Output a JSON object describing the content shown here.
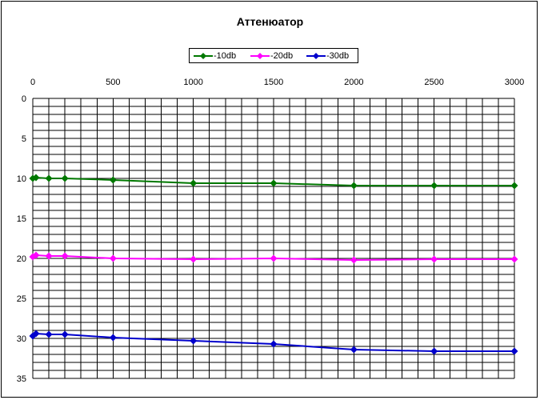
{
  "chart_data": {
    "type": "line",
    "title": "Аттенюатор",
    "xlabel": "",
    "ylabel": "",
    "x_axis_position": "top",
    "y_axis_reversed": true,
    "xlim": [
      0,
      3000
    ],
    "ylim": [
      0,
      35
    ],
    "x_ticks": [
      0,
      500,
      1000,
      1500,
      2000,
      2500,
      3000
    ],
    "y_ticks": [
      0,
      5,
      10,
      15,
      20,
      25,
      30,
      35
    ],
    "grid": true,
    "legend_position": "top-center",
    "series": [
      {
        "name": "-10db",
        "color": "#007800",
        "marker": "diamond",
        "points": [
          [
            0,
            10.0
          ],
          [
            20,
            9.9
          ],
          [
            100,
            10.0
          ],
          [
            200,
            10.0
          ],
          [
            500,
            10.2
          ],
          [
            1000,
            10.6
          ],
          [
            1500,
            10.6
          ],
          [
            2000,
            10.9
          ],
          [
            2500,
            10.9
          ],
          [
            3000,
            10.9
          ]
        ]
      },
      {
        "name": "-20db",
        "color": "#ff00ff",
        "marker": "diamond",
        "points": [
          [
            0,
            19.8
          ],
          [
            20,
            19.6
          ],
          [
            100,
            19.7
          ],
          [
            200,
            19.7
          ],
          [
            500,
            20.0
          ],
          [
            1000,
            20.1
          ],
          [
            1500,
            20.0
          ],
          [
            2000,
            20.2
          ],
          [
            2500,
            20.1
          ],
          [
            3000,
            20.1
          ]
        ]
      },
      {
        "name": "-30db",
        "color": "#0000cc",
        "marker": "diamond",
        "points": [
          [
            0,
            29.7
          ],
          [
            20,
            29.4
          ],
          [
            100,
            29.5
          ],
          [
            200,
            29.5
          ],
          [
            500,
            29.9
          ],
          [
            1000,
            30.3
          ],
          [
            1500,
            30.7
          ],
          [
            2000,
            31.4
          ],
          [
            2500,
            31.6
          ],
          [
            3000,
            31.6
          ]
        ]
      }
    ]
  }
}
